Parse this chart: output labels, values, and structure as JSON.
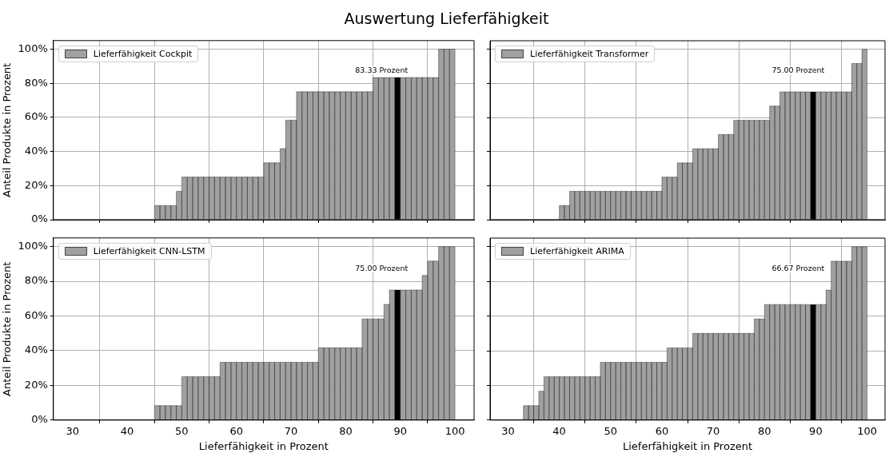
{
  "chart_data": [
    {
      "type": "histogram",
      "title": "Auswertung Lieferfähigkeit",
      "ylabel": "Anteil Produkte in Prozent",
      "bins": [
        45,
        46,
        47,
        48,
        49,
        50,
        51,
        52,
        53,
        54,
        55,
        56,
        57,
        58,
        59,
        60,
        61,
        62,
        63,
        64,
        65,
        66,
        67,
        68,
        69,
        70,
        71,
        72,
        73,
        74,
        75,
        76,
        77,
        78,
        79,
        80,
        81,
        82,
        83,
        84,
        85,
        86,
        87,
        88,
        89,
        90,
        91,
        92,
        93,
        94,
        95,
        96,
        97,
        98,
        99,
        100
      ],
      "series": [
        {
          "name": "Lieferfähigkeit Cockpit",
          "color": "#a0a0a0",
          "values": [
            8.33,
            8.33,
            8.33,
            8.33,
            16.67,
            25,
            25,
            25,
            25,
            25,
            25,
            25,
            25,
            25,
            25,
            25,
            25,
            25,
            25,
            25,
            33.33,
            33.33,
            33.33,
            41.67,
            58.33,
            58.33,
            75,
            75,
            75,
            75,
            75,
            75,
            75,
            75,
            75,
            75,
            75,
            75,
            75,
            75,
            83.33,
            83.33,
            83.33,
            83.33,
            83.33,
            83.33,
            83.33,
            83.33,
            83.33,
            83.33,
            83.33,
            83.33,
            100,
            100,
            100
          ],
          "colors": [
            "#a0a0a0",
            "#a0a0a0",
            "#a0a0a0",
            "#a0a0a0",
            "#a0a0a0",
            "#a0a0a0",
            "#a0a0a0",
            "#a0a0a0",
            "#a0a0a0",
            "#a0a0a0",
            "#a0a0a0",
            "#a0a0a0",
            "#a0a0a0",
            "#a0a0a0",
            "#a0a0a0",
            "#a0a0a0",
            "#a0a0a0",
            "#a0a0a0",
            "#a0a0a0",
            "#a0a0a0",
            "#a0a0a0",
            "#a0a0a0",
            "#a0a0a0",
            "#a0a0a0",
            "#a0a0a0",
            "#a0a0a0",
            "#a0a0a0",
            "#a0a0a0",
            "#a0a0a0",
            "#a0a0a0",
            "#a0a0a0",
            "#a0a0a0",
            "#a0a0a0",
            "#a0a0a0",
            "#a0a0a0",
            "#a0a0a0",
            "#a0a0a0",
            "#a0a0a0",
            "#a0a0a0",
            "#a0a0a0",
            "#a0a0a0",
            "#a0a0a0",
            "#a0a0a0",
            "#a0a0a0",
            "#000000",
            "#a0a0a0",
            "#a0a0a0",
            "#a0a0a0",
            "#a0a0a0",
            "#a0a0a0",
            "#a0a0a0",
            "#a0a0a0",
            "#a0a0a0",
            "#a0a0a0",
            "#a0a0a0"
          ]
        }
      ],
      "annotations": [
        "83.33 Prozent"
      ],
      "xlim": [
        26.5,
        103.5
      ],
      "ylim": [
        0,
        105
      ],
      "xticks": [
        {
          "value": 30,
          "label": null
        },
        {
          "value": 40,
          "label": null
        },
        {
          "value": 50,
          "label": null
        },
        {
          "value": 60,
          "label": null
        },
        {
          "value": 70,
          "label": null
        },
        {
          "value": 80,
          "label": null
        },
        {
          "value": 90,
          "label": null
        },
        {
          "value": 100,
          "label": null
        }
      ],
      "yticks": [
        {
          "value": 0,
          "label": "0%"
        },
        {
          "value": 20,
          "label": "20%"
        },
        {
          "value": 40,
          "label": "40%"
        },
        {
          "value": 60,
          "label": "60%"
        },
        {
          "value": 80,
          "label": "80%"
        },
        {
          "value": 100,
          "label": "100%"
        }
      ],
      "tick_labels": "y",
      "grid": true,
      "legend": "top left"
    },
    {
      "type": "histogram",
      "bins": [
        40,
        41,
        42,
        43,
        44,
        45,
        46,
        47,
        48,
        49,
        50,
        51,
        52,
        53,
        54,
        55,
        56,
        57,
        58,
        59,
        60,
        61,
        62,
        63,
        64,
        65,
        66,
        67,
        68,
        69,
        70,
        71,
        72,
        73,
        74,
        75,
        76,
        77,
        78,
        79,
        80,
        81,
        82,
        83,
        84,
        85,
        86,
        87,
        88,
        89,
        90,
        91,
        92,
        93,
        94,
        95,
        96,
        97,
        98,
        99,
        100
      ],
      "series": [
        {
          "name": "Lieferfähigkeit Transformer",
          "color": "#a0a0a0",
          "values": [
            8.33,
            8.33,
            16.67,
            16.67,
            16.67,
            16.67,
            16.67,
            16.67,
            16.67,
            16.67,
            16.67,
            16.67,
            16.67,
            16.67,
            16.67,
            16.67,
            16.67,
            16.67,
            16.67,
            16.67,
            25,
            25,
            25,
            33.33,
            33.33,
            33.33,
            41.67,
            41.67,
            41.67,
            41.67,
            41.67,
            50,
            50,
            50,
            58.33,
            58.33,
            58.33,
            58.33,
            58.33,
            58.33,
            58.33,
            66.67,
            66.67,
            75,
            75,
            75,
            75,
            75,
            75,
            75,
            75,
            75,
            75,
            75,
            75,
            75,
            75,
            91.67,
            91.67,
            100
          ],
          "colors": [
            "#a0a0a0",
            "#a0a0a0",
            "#a0a0a0",
            "#a0a0a0",
            "#a0a0a0",
            "#a0a0a0",
            "#a0a0a0",
            "#a0a0a0",
            "#a0a0a0",
            "#a0a0a0",
            "#a0a0a0",
            "#a0a0a0",
            "#a0a0a0",
            "#a0a0a0",
            "#a0a0a0",
            "#a0a0a0",
            "#a0a0a0",
            "#a0a0a0",
            "#a0a0a0",
            "#a0a0a0",
            "#a0a0a0",
            "#a0a0a0",
            "#a0a0a0",
            "#a0a0a0",
            "#a0a0a0",
            "#a0a0a0",
            "#a0a0a0",
            "#a0a0a0",
            "#a0a0a0",
            "#a0a0a0",
            "#a0a0a0",
            "#a0a0a0",
            "#a0a0a0",
            "#a0a0a0",
            "#a0a0a0",
            "#a0a0a0",
            "#a0a0a0",
            "#a0a0a0",
            "#a0a0a0",
            "#a0a0a0",
            "#a0a0a0",
            "#a0a0a0",
            "#a0a0a0",
            "#a0a0a0",
            "#a0a0a0",
            "#a0a0a0",
            "#a0a0a0",
            "#a0a0a0",
            "#a0a0a0",
            "#000000",
            "#a0a0a0",
            "#a0a0a0",
            "#a0a0a0",
            "#a0a0a0",
            "#a0a0a0",
            "#a0a0a0",
            "#a0a0a0",
            "#a0a0a0",
            "#a0a0a0",
            "#a0a0a0"
          ]
        }
      ],
      "annotations": [
        "75.00 Prozent"
      ],
      "xlim": [
        26.5,
        103.5
      ],
      "ylim": [
        0,
        105
      ],
      "xticks": [
        {
          "value": 30,
          "label": null
        },
        {
          "value": 40,
          "label": null
        },
        {
          "value": 50,
          "label": null
        },
        {
          "value": 60,
          "label": null
        },
        {
          "value": 70,
          "label": null
        },
        {
          "value": 80,
          "label": null
        },
        {
          "value": 90,
          "label": null
        },
        {
          "value": 100,
          "label": null
        }
      ],
      "yticks": [
        {
          "value": 0,
          "label": null
        },
        {
          "value": 20,
          "label": null
        },
        {
          "value": 40,
          "label": null
        },
        {
          "value": 60,
          "label": null
        },
        {
          "value": 80,
          "label": null
        },
        {
          "value": 100,
          "label": null
        }
      ],
      "tick_labels": false,
      "grid": true,
      "legend": "top left"
    },
    {
      "type": "histogram",
      "xlabel": "Lieferfähigkeit in Prozent",
      "ylabel": "Anteil Produkte in Prozent",
      "bins": [
        45,
        46,
        47,
        48,
        49,
        50,
        51,
        52,
        53,
        54,
        55,
        56,
        57,
        58,
        59,
        60,
        61,
        62,
        63,
        64,
        65,
        66,
        67,
        68,
        69,
        70,
        71,
        72,
        73,
        74,
        75,
        76,
        77,
        78,
        79,
        80,
        81,
        82,
        83,
        84,
        85,
        86,
        87,
        88,
        89,
        90,
        91,
        92,
        93,
        94,
        95,
        96,
        97,
        98,
        99,
        100
      ],
      "series": [
        {
          "name": "Lieferfähigkeit CNN-LSTM",
          "color": "#a0a0a0",
          "values": [
            8.33,
            8.33,
            8.33,
            8.33,
            8.33,
            25,
            25,
            25,
            25,
            25,
            25,
            25,
            33.33,
            33.33,
            33.33,
            33.33,
            33.33,
            33.33,
            33.33,
            33.33,
            33.33,
            33.33,
            33.33,
            33.33,
            33.33,
            33.33,
            33.33,
            33.33,
            33.33,
            33.33,
            41.67,
            41.67,
            41.67,
            41.67,
            41.67,
            41.67,
            41.67,
            41.67,
            58.33,
            58.33,
            58.33,
            58.33,
            66.67,
            75,
            75,
            75,
            75,
            75,
            75,
            83.33,
            91.67,
            91.67,
            100,
            100,
            100
          ],
          "colors": [
            "#a0a0a0",
            "#a0a0a0",
            "#a0a0a0",
            "#a0a0a0",
            "#a0a0a0",
            "#a0a0a0",
            "#a0a0a0",
            "#a0a0a0",
            "#a0a0a0",
            "#a0a0a0",
            "#a0a0a0",
            "#a0a0a0",
            "#a0a0a0",
            "#a0a0a0",
            "#a0a0a0",
            "#a0a0a0",
            "#a0a0a0",
            "#a0a0a0",
            "#a0a0a0",
            "#a0a0a0",
            "#a0a0a0",
            "#a0a0a0",
            "#a0a0a0",
            "#a0a0a0",
            "#a0a0a0",
            "#a0a0a0",
            "#a0a0a0",
            "#a0a0a0",
            "#a0a0a0",
            "#a0a0a0",
            "#a0a0a0",
            "#a0a0a0",
            "#a0a0a0",
            "#a0a0a0",
            "#a0a0a0",
            "#a0a0a0",
            "#a0a0a0",
            "#a0a0a0",
            "#a0a0a0",
            "#a0a0a0",
            "#a0a0a0",
            "#a0a0a0",
            "#a0a0a0",
            "#a0a0a0",
            "#000000",
            "#a0a0a0",
            "#a0a0a0",
            "#a0a0a0",
            "#a0a0a0",
            "#a0a0a0",
            "#a0a0a0",
            "#a0a0a0",
            "#a0a0a0",
            "#a0a0a0",
            "#a0a0a0"
          ]
        }
      ],
      "annotations": [
        "75.00 Prozent"
      ],
      "xlim": [
        26.5,
        103.5
      ],
      "ylim": [
        0,
        105
      ],
      "xticks": [
        30,
        40,
        50,
        60,
        70,
        80,
        90,
        100
      ],
      "yticks": [
        {
          "value": 0,
          "label": "0%"
        },
        {
          "value": 20,
          "label": "20%"
        },
        {
          "value": 40,
          "label": "40%"
        },
        {
          "value": 60,
          "label": "60%"
        },
        {
          "value": 80,
          "label": "80%"
        },
        {
          "value": 100,
          "label": "100%"
        }
      ],
      "grid": true,
      "legend": "top left"
    },
    {
      "type": "histogram",
      "xlabel": "Lieferfähigkeit in Prozent",
      "bins": [
        33,
        34,
        35,
        36,
        37,
        38,
        39,
        40,
        41,
        42,
        43,
        44,
        45,
        46,
        47,
        48,
        49,
        50,
        51,
        52,
        53,
        54,
        55,
        56,
        57,
        58,
        59,
        60,
        61,
        62,
        63,
        64,
        65,
        66,
        67,
        68,
        69,
        70,
        71,
        72,
        73,
        74,
        75,
        76,
        77,
        78,
        79,
        80,
        81,
        82,
        83,
        84,
        85,
        86,
        87,
        88,
        89,
        90,
        91,
        92,
        93,
        94,
        95,
        96,
        97,
        98,
        99,
        100
      ],
      "series": [
        {
          "name": "Lieferfähigkeit ARIMA",
          "color": "#a0a0a0",
          "values": [
            8.33,
            8.33,
            8.33,
            16.67,
            25,
            25,
            25,
            25,
            25,
            25,
            25,
            25,
            25,
            25,
            25,
            33.33,
            33.33,
            33.33,
            33.33,
            33.33,
            33.33,
            33.33,
            33.33,
            33.33,
            33.33,
            33.33,
            33.33,
            33.33,
            41.67,
            41.67,
            41.67,
            41.67,
            41.67,
            50,
            50,
            50,
            50,
            50,
            50,
            50,
            50,
            50,
            50,
            50,
            50,
            58.33,
            58.33,
            66.67,
            66.67,
            66.67,
            66.67,
            66.67,
            66.67,
            66.67,
            66.67,
            66.67,
            66.67,
            66.67,
            66.67,
            75,
            91.67,
            91.67,
            91.67,
            91.67,
            100,
            100,
            100
          ],
          "colors": [
            "#a0a0a0",
            "#a0a0a0",
            "#a0a0a0",
            "#a0a0a0",
            "#a0a0a0",
            "#a0a0a0",
            "#a0a0a0",
            "#a0a0a0",
            "#a0a0a0",
            "#a0a0a0",
            "#a0a0a0",
            "#a0a0a0",
            "#a0a0a0",
            "#a0a0a0",
            "#a0a0a0",
            "#a0a0a0",
            "#a0a0a0",
            "#a0a0a0",
            "#a0a0a0",
            "#a0a0a0",
            "#a0a0a0",
            "#a0a0a0",
            "#a0a0a0",
            "#a0a0a0",
            "#a0a0a0",
            "#a0a0a0",
            "#a0a0a0",
            "#a0a0a0",
            "#a0a0a0",
            "#a0a0a0",
            "#a0a0a0",
            "#a0a0a0",
            "#a0a0a0",
            "#a0a0a0",
            "#a0a0a0",
            "#a0a0a0",
            "#a0a0a0",
            "#a0a0a0",
            "#a0a0a0",
            "#a0a0a0",
            "#a0a0a0",
            "#a0a0a0",
            "#a0a0a0",
            "#a0a0a0",
            "#a0a0a0",
            "#a0a0a0",
            "#a0a0a0",
            "#a0a0a0",
            "#a0a0a0",
            "#a0a0a0",
            "#a0a0a0",
            "#a0a0a0",
            "#a0a0a0",
            "#a0a0a0",
            "#a0a0a0",
            "#a0a0a0",
            "#000000",
            "#a0a0a0",
            "#a0a0a0",
            "#a0a0a0",
            "#a0a0a0",
            "#a0a0a0",
            "#a0a0a0",
            "#a0a0a0",
            "#a0a0a0",
            "#a0a0a0",
            "#a0a0a0"
          ]
        }
      ],
      "annotations": [
        "66.67 Prozent"
      ],
      "xlim": [
        26.5,
        103.5
      ],
      "ylim": [
        0,
        105
      ],
      "xticks": [
        30,
        40,
        50,
        60,
        70,
        80,
        90,
        100
      ],
      "yticks": [
        {
          "value": 0,
          "label": null
        },
        {
          "value": 20,
          "label": null
        },
        {
          "value": 40,
          "label": null
        },
        {
          "value": 60,
          "label": null
        },
        {
          "value": 80,
          "label": null
        },
        {
          "value": 100,
          "label": null
        }
      ],
      "tick_labels": "x",
      "grid": true,
      "legend": "top left"
    }
  ]
}
